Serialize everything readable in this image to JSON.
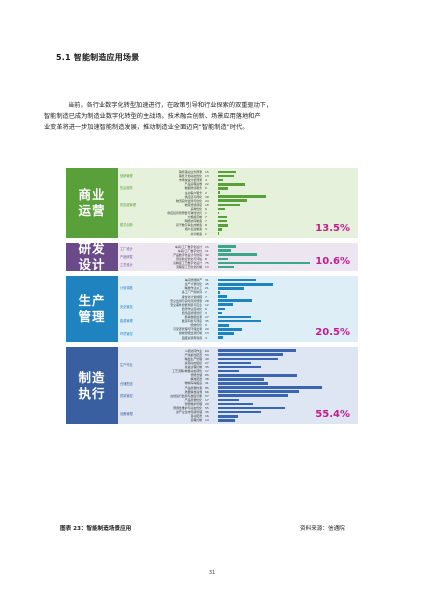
{
  "heading": "5.1 智能制造应用场景",
  "paragraph": {
    "lines": [
      "当前，各行业数字化转型加速进行，在政策引导和行业探索的双重驱动下，",
      "智能制造已成为制造业数字化转型的主战场。技术融合创新、场景应用落地和产",
      "业变革将进一步加速智能制造发展，推动制造业全面迈向“智能制造”时代。"
    ]
  },
  "figure": {
    "caption": "图表 23：智能制造场景应用",
    "source": "资料来源：信通院",
    "sections": [
      {
        "title_lines": [
          "商业",
          "运营"
        ],
        "percent": "13.5%",
        "colors": {
          "band": "#e6f1dc",
          "label": "#5aa03a",
          "bar": "#5aa03a",
          "sub": "#5aa03a",
          "pct": "#c41d8f"
        },
        "groups": [
          {
            "name": "营销管理",
            "items": [
              [
                "销售驱动业务预测",
                15
              ],
              [
                "销售计划动态优化",
                13
              ],
              [
                "市场快速分析预测",
                4
              ]
            ]
          },
          {
            "name": "售后服务",
            "items": [
              [
                "产品远程运维",
                22
              ],
              [
                "数据增值服务",
                8
              ],
              [
                "主动客户服务",
                2
              ]
            ]
          },
          {
            "name": "供应链管理",
            "items": [
              [
                "供应链可视化",
                39
              ],
              [
                "物流实时监测与优化",
                24
              ],
              [
                "物流智能调度",
                18
              ],
              [
                "采购优化",
                6
              ],
              [
                "供应链风险预警与弹性管控",
                1
              ]
            ]
          },
          {
            "name": "模式创新",
            "items": [
              [
                "大规模定制",
                7
              ],
              [
                "网络协同制造",
                7
              ],
              [
                "基于数字孪生的制造",
                8
              ],
              [
                "用户直连制造",
                3
              ],
              [
                "共享制造",
                1
              ]
            ]
          }
        ]
      },
      {
        "title_lines": [
          "研发",
          "设计"
        ],
        "percent": "10.6%",
        "colors": {
          "band": "#ece6f1",
          "label": "#6b4a8a",
          "bar": "#3da58a",
          "sub": "#6b4a8a",
          "pct": "#c41d8f"
        },
        "groups": [
          {
            "name": "工厂设计",
            "items": [
              [
                "车间/工厂数字化设计",
                15
              ],
              [
                "车间/工厂数字交付",
                11
              ]
            ]
          },
          {
            "name": "产品研发",
            "items": [
              [
                "产品数字化设计与仿真",
                32
              ],
              [
                "测试验证优化与评估",
                8
              ]
            ]
          },
          {
            "name": "工艺设计",
            "items": [
              [
                "高精度工艺数字化设计",
                75
              ],
              [
                "流程型工艺优化控制",
                13
              ]
            ]
          }
        ]
      },
      {
        "title_lines": [
          "生产",
          "管理"
        ],
        "percent": "20.5%",
        "colors": {
          "band": "#ddeef6",
          "label": "#1f83c0",
          "bar": "#1f83c0",
          "sub": "#1f83c0",
          "pct": "#c41d8f"
        },
        "groups": [
          {
            "name": "计划调度",
            "items": [
              [
                "车间智能排产",
                31
              ],
              [
                "生产计划优化",
                45
              ],
              [
                "精准作业派工",
                21
              ],
              [
                "多工厂产供协同",
                2
              ],
              [
                "柔性化计划排程",
                7
              ]
            ]
          },
          {
            "name": "安全管控",
            "items": [
              [
                "安全监测与实时风险预警",
                28
              ],
              [
                "安全事件智能溯源与应急",
                12
              ],
              [
                "危险作业自动化",
                6
              ],
              [
                "危险品智能管控",
                3
              ]
            ]
          },
          {
            "name": "能源管理",
            "items": [
              [
                "能耗数据监测",
                27
              ],
              [
                "能源平衡与调度",
                35
              ],
              [
                "能效优化",
                9
              ]
            ]
          },
          {
            "name": "环境管控",
            "items": [
              [
                "污染源管理与环保监测",
                20
              ],
              [
                "排放智能监测控制",
                13
              ],
              [
                "固废资源再利用",
                4
              ]
            ]
          }
        ]
      },
      {
        "title_lines": [
          "制造",
          "执行"
        ],
        "percent": "55.4%",
        "colors": {
          "band": "#dde6f2",
          "label": "#3a5fa0",
          "bar": "#3a66b0",
          "sub": "#3a5fa0",
          "pct": "#c41d8f"
        },
        "groups": [
          {
            "name": "生产作业",
            "items": [
              [
                "人机协同作业",
                64
              ],
              [
                "产线柔性配置",
                53
              ],
              [
                "精益生产管理",
                49
              ],
              [
                "资源动态组织",
                27
              ],
              [
                "先进过程控制",
                35
              ],
              [
                "工艺流程/参数动态调优",
                17
              ],
              [
                "智能仓储",
                65
              ],
              [
                "精准配送",
                38
              ]
            ]
          },
          {
            "name": "仓储配送",
            "items": [
              [
                "物料码垛搬运",
                41
              ]
            ]
          },
          {
            "name": "质量管控",
            "items": [
              [
                "产品质量检测",
                85
              ],
              [
                "质量精准追溯",
                66
              ],
              [
                "在线运行监测与故障诊断",
                57
              ],
              [
                "产品质量优化",
                17
              ],
              [
                "智能维护管理",
                29
              ]
            ]
          },
          {
            "name": "设备管理",
            "items": [
              [
                "预测性维护与动态优化",
                55
              ],
              [
                "资产全生命周期管理",
                35
              ],
              [
                "自动配送",
                16
              ],
              [
                "远程控制",
                14
              ]
            ]
          }
        ]
      }
    ]
  },
  "page_number": "31"
}
